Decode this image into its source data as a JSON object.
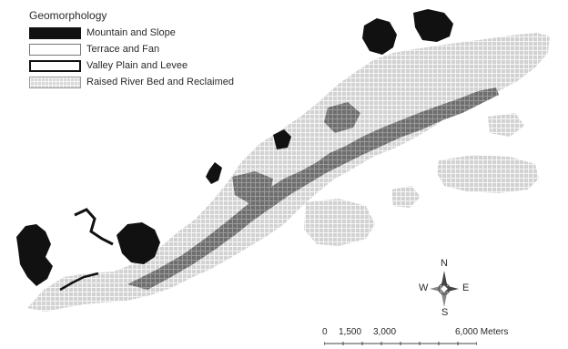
{
  "legend": {
    "title": "Geomorphology",
    "items": [
      {
        "label": "Mountain and Slope"
      },
      {
        "label": "Terrace and Fan"
      },
      {
        "label": "Valley Plain and Levee"
      },
      {
        "label": "Raised River Bed and Reclaimed"
      }
    ]
  },
  "north_arrow": {
    "n": "N",
    "s": "S",
    "e": "E",
    "w": "W"
  },
  "scale_bar": {
    "l0": "0",
    "l1": "1,500",
    "l2": "3,000",
    "l3": "6,000 Meters"
  },
  "colors": {
    "mountain": "#111111",
    "raised": "#d7d7d7",
    "valley": "#666666"
  }
}
